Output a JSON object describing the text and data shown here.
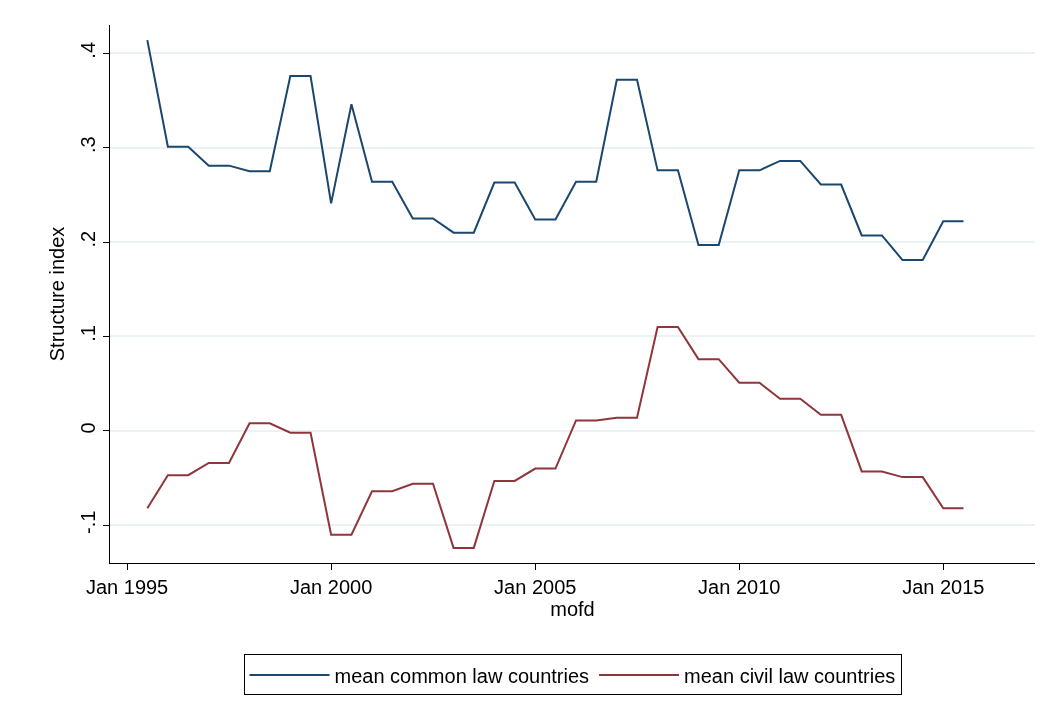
{
  "chart_data": {
    "type": "line",
    "xlabel": "mofd",
    "ylabel": "Structure index",
    "x": [
      "1995-07",
      "1996-01",
      "1996-07",
      "1997-01",
      "1997-07",
      "1998-01",
      "1998-07",
      "1999-01",
      "1999-07",
      "2000-01",
      "2000-07",
      "2001-01",
      "2001-07",
      "2002-01",
      "2002-07",
      "2003-01",
      "2003-07",
      "2004-01",
      "2004-07",
      "2005-01",
      "2005-07",
      "2006-01",
      "2006-07",
      "2007-01",
      "2007-07",
      "2008-01",
      "2008-07",
      "2009-01",
      "2009-07",
      "2010-01",
      "2010-07",
      "2011-01",
      "2011-07",
      "2012-01",
      "2012-07",
      "2013-01",
      "2013-07",
      "2014-01",
      "2014-07",
      "2015-01",
      "2015-07"
    ],
    "series": [
      {
        "name": "mean common law countries",
        "color": "#1a476f",
        "values": [
          0.414,
          0.301,
          0.301,
          0.281,
          0.281,
          0.275,
          0.275,
          0.376,
          0.376,
          0.241,
          0.346,
          0.264,
          0.264,
          0.225,
          0.225,
          0.21,
          0.21,
          0.263,
          0.263,
          0.224,
          0.224,
          0.264,
          0.264,
          0.372,
          0.372,
          0.276,
          0.276,
          0.197,
          0.197,
          0.276,
          0.276,
          0.286,
          0.286,
          0.261,
          0.261,
          0.207,
          0.207,
          0.181,
          0.181,
          0.222,
          0.222
        ]
      },
      {
        "name": "mean civil law countries",
        "color": "#90353b",
        "values": [
          -0.082,
          -0.047,
          -0.047,
          -0.034,
          -0.034,
          0.008,
          0.008,
          -0.002,
          -0.002,
          -0.11,
          -0.11,
          -0.064,
          -0.064,
          -0.056,
          -0.056,
          -0.124,
          -0.124,
          -0.053,
          -0.053,
          -0.04,
          -0.04,
          0.011,
          0.011,
          0.014,
          0.014,
          0.11,
          0.11,
          0.076,
          0.076,
          0.051,
          0.051,
          0.034,
          0.034,
          0.017,
          0.017,
          -0.043,
          -0.043,
          -0.049,
          -0.049,
          -0.082,
          -0.082
        ]
      }
    ],
    "xlim": [
      "1994-08",
      "2017-04"
    ],
    "xticks": [
      {
        "value": "1995-01",
        "label": "Jan 1995"
      },
      {
        "value": "2000-01",
        "label": "Jan 2000"
      },
      {
        "value": "2005-01",
        "label": "Jan 2005"
      },
      {
        "value": "2010-01",
        "label": "Jan 2010"
      },
      {
        "value": "2015-01",
        "label": "Jan 2015"
      }
    ],
    "ylim": [
      -0.14,
      0.43
    ],
    "yticks": [
      {
        "value": -0.1,
        "label": "-.1"
      },
      0,
      {
        "value": 0.1,
        "label": ".1"
      },
      {
        "value": 0.2,
        "label": ".2"
      },
      {
        "value": 0.3,
        "label": ".3"
      },
      {
        "value": 0.4,
        "label": ".4"
      }
    ],
    "grid": "y",
    "legend": "bottom",
    "marker": "none",
    "line_style": "solid"
  }
}
